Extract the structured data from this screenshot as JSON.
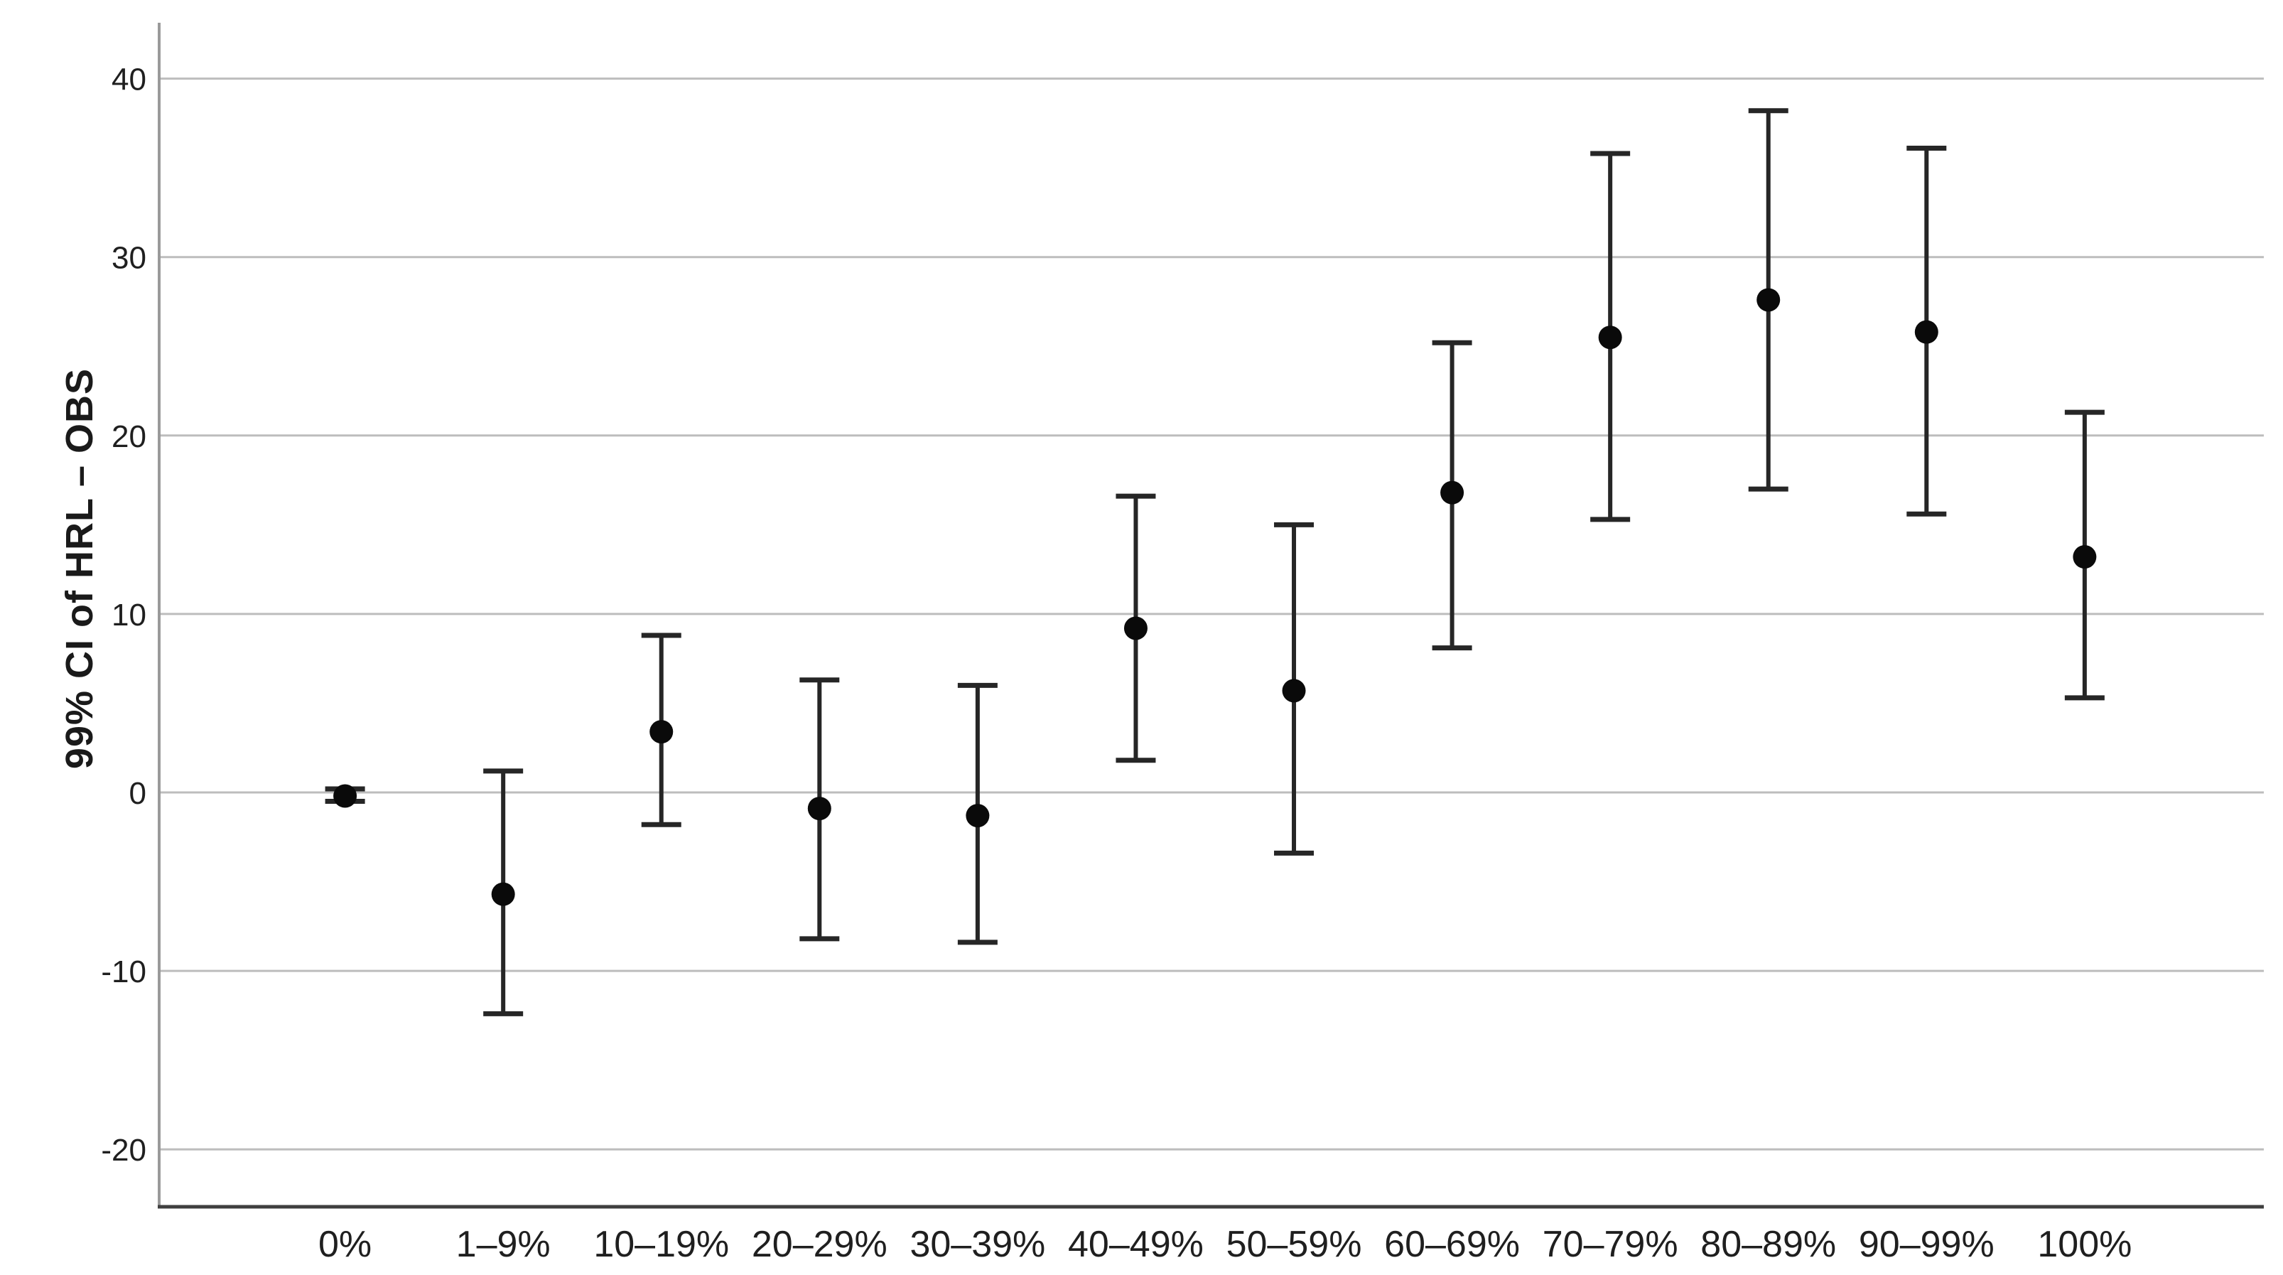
{
  "chart_data": {
    "type": "errorbar",
    "title": "",
    "ylabel": "99% CI of HRL – OBS",
    "xlabel": "",
    "categories": [
      "0%",
      "1–9%",
      "10–19%",
      "20–29%",
      "30–39%",
      "40–49%",
      "50–59%",
      "60–69%",
      "70–79%",
      "80–89%",
      "90–99%",
      "100%"
    ],
    "series": [
      {
        "name": "99% CI of HRL – OBS",
        "means": [
          -0.2,
          -5.7,
          3.4,
          -0.9,
          -1.3,
          9.2,
          5.7,
          16.8,
          25.5,
          27.6,
          25.8,
          13.2
        ],
        "ci_low": [
          -0.5,
          -12.4,
          -1.8,
          -8.2,
          -8.4,
          1.8,
          -3.4,
          8.1,
          15.3,
          17.0,
          15.6,
          5.3
        ],
        "ci_high": [
          0.2,
          1.2,
          8.8,
          6.3,
          6.0,
          16.6,
          15.0,
          25.2,
          35.8,
          38.2,
          36.1,
          21.3
        ]
      }
    ],
    "yticks": [
      40,
      30,
      20,
      10,
      0,
      -10,
      -20
    ],
    "ylim": [
      -23.2,
      43.1
    ],
    "grid": "horizontal-only",
    "legend": "none",
    "marker": "filled-circle",
    "colors": {
      "marker": "#0a0a0a",
      "error_bar": "#262626",
      "gridline": "#bdbdbd",
      "y_axis_line": "#9a9a9a",
      "x_axis_line": "#3f3f3f",
      "text": "#1f1f1f",
      "background": "#ffffff"
    }
  }
}
